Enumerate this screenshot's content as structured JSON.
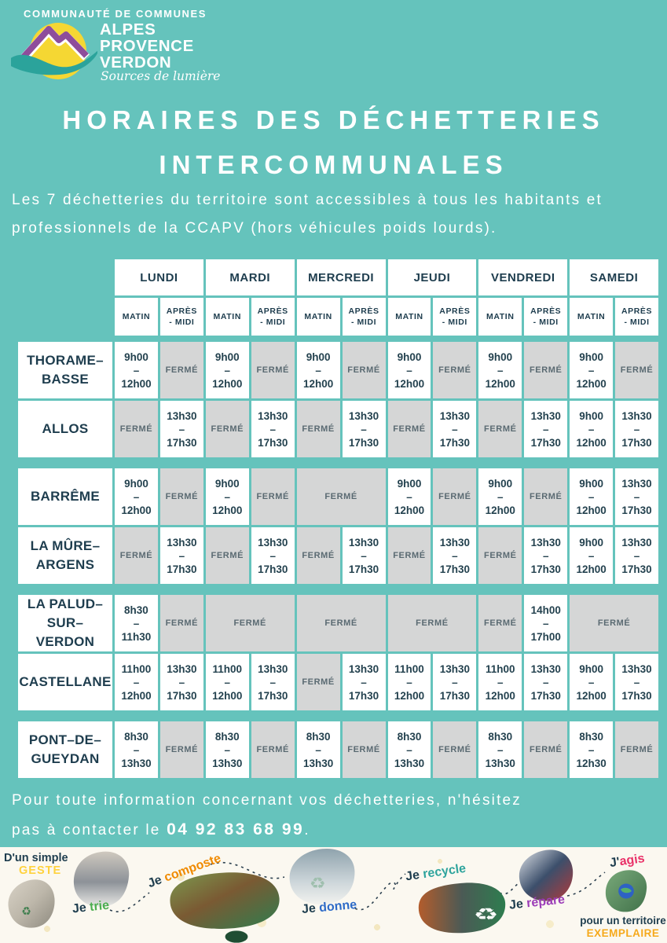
{
  "colors": {
    "teal_bg": "#65C3BC",
    "navy": "#1E3D4E",
    "closed_bg": "#D5D6D6",
    "closed_text": "#5A6A72",
    "footer_bg": "#FBF8F0",
    "logo_yellow": "#F5D733",
    "logo_purple": "#8E4D9B",
    "logo_teal": "#2BA39B"
  },
  "logo": {
    "supertitle": "COMMUNAUTÉ DE COMMUNES",
    "lines": [
      "ALPES",
      "PROVENCE",
      "VERDON"
    ],
    "tagline": "Sources de lumière"
  },
  "title": {
    "line1": "HORAIRES DES DÉCHETTERIES",
    "line2": "INTERCOMMUNALES"
  },
  "intro": "Les 7 déchetteries du territoire sont accessibles  à tous les habitants et professionnels de la CCAPV (hors véhicules poids lourds).",
  "schedule": {
    "days": [
      "LUNDI",
      "MARDI",
      "MERCREDI",
      "JEUDI",
      "VENDREDI",
      "SAMEDI"
    ],
    "morning_label": "MATIN",
    "afternoon_label_line1": "APRÈS",
    "afternoon_label_line2": "- MIDI",
    "closed_label": "FERMÉ",
    "groups": [
      [
        {
          "name": "THORAME–\nBASSE",
          "cells": [
            {
              "type": "open",
              "from": "9h00",
              "to": "12h00"
            },
            {
              "type": "closed"
            },
            {
              "type": "open",
              "from": "9h00",
              "to": "12h00"
            },
            {
              "type": "closed"
            },
            {
              "type": "open",
              "from": "9h00",
              "to": "12h00"
            },
            {
              "type": "closed"
            },
            {
              "type": "open",
              "from": "9h00",
              "to": "12h00"
            },
            {
              "type": "closed"
            },
            {
              "type": "open",
              "from": "9h00",
              "to": "12h00"
            },
            {
              "type": "closed"
            },
            {
              "type": "open",
              "from": "9h00",
              "to": "12h00"
            },
            {
              "type": "closed"
            }
          ]
        },
        {
          "name": "ALLOS",
          "cells": [
            {
              "type": "closed"
            },
            {
              "type": "open",
              "from": "13h30",
              "to": "17h30"
            },
            {
              "type": "closed"
            },
            {
              "type": "open",
              "from": "13h30",
              "to": "17h30"
            },
            {
              "type": "closed"
            },
            {
              "type": "open",
              "from": "13h30",
              "to": "17h30"
            },
            {
              "type": "closed"
            },
            {
              "type": "open",
              "from": "13h30",
              "to": "17h30"
            },
            {
              "type": "closed"
            },
            {
              "type": "open",
              "from": "13h30",
              "to": "17h30"
            },
            {
              "type": "open",
              "from": "9h00",
              "to": "12h00"
            },
            {
              "type": "open",
              "from": "13h30",
              "to": "17h30"
            }
          ]
        }
      ],
      [
        {
          "name": "BARRÊME",
          "cells": [
            {
              "type": "open",
              "from": "9h00",
              "to": "12h00"
            },
            {
              "type": "closed"
            },
            {
              "type": "open",
              "from": "9h00",
              "to": "12h00"
            },
            {
              "type": "closed"
            },
            {
              "type": "closed",
              "span": 2
            },
            {
              "type": "open",
              "from": "9h00",
              "to": "12h00"
            },
            {
              "type": "closed"
            },
            {
              "type": "open",
              "from": "9h00",
              "to": "12h00"
            },
            {
              "type": "closed"
            },
            {
              "type": "open",
              "from": "9h00",
              "to": "12h00"
            },
            {
              "type": "open",
              "from": "13h30",
              "to": "17h30"
            }
          ]
        },
        {
          "name": "LA MÛRE–\nARGENS",
          "cells": [
            {
              "type": "closed"
            },
            {
              "type": "open",
              "from": "13h30",
              "to": "17h30"
            },
            {
              "type": "closed"
            },
            {
              "type": "open",
              "from": "13h30",
              "to": "17h30"
            },
            {
              "type": "closed"
            },
            {
              "type": "open",
              "from": "13h30",
              "to": "17h30"
            },
            {
              "type": "closed"
            },
            {
              "type": "open",
              "from": "13h30",
              "to": "17h30"
            },
            {
              "type": "closed"
            },
            {
              "type": "open",
              "from": "13h30",
              "to": "17h30"
            },
            {
              "type": "open",
              "from": "9h00",
              "to": "12h00"
            },
            {
              "type": "open",
              "from": "13h30",
              "to": "17h30"
            }
          ]
        }
      ],
      [
        {
          "name": "LA PALUD–\nSUR–VERDON",
          "cells": [
            {
              "type": "open",
              "from": "8h30",
              "to": "11h30"
            },
            {
              "type": "closed"
            },
            {
              "type": "closed",
              "span": 2
            },
            {
              "type": "closed",
              "span": 2
            },
            {
              "type": "closed",
              "span": 2
            },
            {
              "type": "closed"
            },
            {
              "type": "open",
              "from": "14h00",
              "to": "17h00"
            },
            {
              "type": "closed",
              "span": 2
            }
          ]
        },
        {
          "name": "CASTELLANE",
          "cells": [
            {
              "type": "open",
              "from": "11h00",
              "to": "12h00"
            },
            {
              "type": "open",
              "from": "13h30",
              "to": "17h30"
            },
            {
              "type": "open",
              "from": "11h00",
              "to": "12h00"
            },
            {
              "type": "open",
              "from": "13h30",
              "to": "17h30"
            },
            {
              "type": "closed"
            },
            {
              "type": "open",
              "from": "13h30",
              "to": "17h30"
            },
            {
              "type": "open",
              "from": "11h00",
              "to": "12h00"
            },
            {
              "type": "open",
              "from": "13h30",
              "to": "17h30"
            },
            {
              "type": "open",
              "from": "11h00",
              "to": "12h00"
            },
            {
              "type": "open",
              "from": "13h30",
              "to": "17h30"
            },
            {
              "type": "open",
              "from": "9h00",
              "to": "12h00"
            },
            {
              "type": "open",
              "from": "13h30",
              "to": "17h30"
            }
          ]
        }
      ],
      [
        {
          "name": "PONT–DE–\nGUEYDAN",
          "cells": [
            {
              "type": "open",
              "from": "8h30",
              "to": "13h30"
            },
            {
              "type": "closed"
            },
            {
              "type": "open",
              "from": "8h30",
              "to": "13h30"
            },
            {
              "type": "closed"
            },
            {
              "type": "open",
              "from": "8h30",
              "to": "13h30"
            },
            {
              "type": "closed"
            },
            {
              "type": "open",
              "from": "8h30",
              "to": "13h30"
            },
            {
              "type": "closed"
            },
            {
              "type": "open",
              "from": "8h30",
              "to": "13h30"
            },
            {
              "type": "closed"
            },
            {
              "type": "open",
              "from": "8h30",
              "to": "12h30"
            },
            {
              "type": "closed"
            }
          ]
        }
      ]
    ]
  },
  "contact": {
    "line1": "Pour toute information concernant vos déchetteries, n'hésitez",
    "line2_prefix": "pas à contacter le ",
    "phone": "04 92 83 68 99",
    "suffix": "."
  },
  "footer": {
    "intro_line1": "D'un simple",
    "intro_line2": "GESTE",
    "items": [
      {
        "je": "Je",
        "word": "trie",
        "color": "#4CAE50"
      },
      {
        "je": "Je",
        "word": "composte",
        "color": "#F08A00"
      },
      {
        "je": "Je",
        "word": "donne",
        "color": "#2E6BC8"
      },
      {
        "je": "Je",
        "word": "recycle",
        "color": "#2FA49D"
      },
      {
        "je": "Je",
        "word": "répare",
        "color": "#9C3DB8"
      },
      {
        "je": "J'",
        "word": "agis",
        "color": "#E93168"
      }
    ],
    "outro_line1": "pour un territoire",
    "outro_line2": "EXEMPLAIRE",
    "outro_line2_color": "#F6A91B"
  }
}
